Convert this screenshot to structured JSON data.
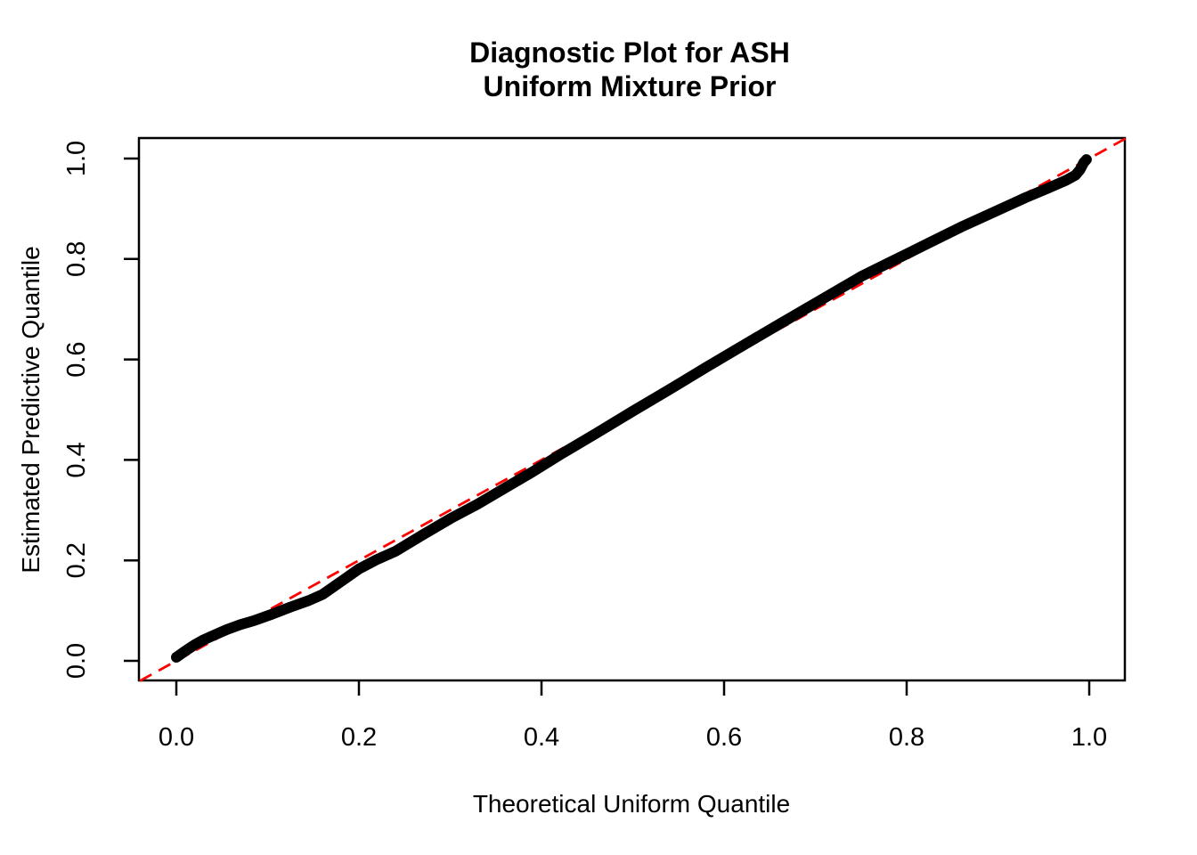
{
  "chart": {
    "title_line1": "Diagnostic Plot for ASH",
    "title_line2": "Uniform Mixture Prior",
    "xlabel": "Theoretical Uniform Quantile",
    "ylabel": "Estimated Predictive Quantile"
  },
  "chart_data": {
    "type": "scatter",
    "title": "Diagnostic Plot for ASH\nUniform Mixture Prior",
    "xlabel": "Theoretical Uniform Quantile",
    "ylabel": "Estimated Predictive Quantile",
    "xlim": [
      -0.04,
      1.04
    ],
    "ylim": [
      -0.04,
      1.04
    ],
    "x_ticks": [
      0.0,
      0.2,
      0.4,
      0.6,
      0.8,
      1.0
    ],
    "y_ticks": [
      0.0,
      0.2,
      0.4,
      0.6,
      0.8,
      1.0
    ],
    "grid": false,
    "legend": null,
    "series": [
      {
        "name": "estimated-predictive-quantiles",
        "type": "points",
        "marker": "filled-circle-dense-band",
        "color": "#000000",
        "x": [
          0.0,
          0.01,
          0.02,
          0.03,
          0.04,
          0.055,
          0.07,
          0.085,
          0.105,
          0.125,
          0.145,
          0.16,
          0.175,
          0.2,
          0.22,
          0.24,
          0.27,
          0.3,
          0.33,
          0.36,
          0.39,
          0.42,
          0.46,
          0.5,
          0.54,
          0.58,
          0.62,
          0.665,
          0.7,
          0.75,
          0.78,
          0.82,
          0.86,
          0.9,
          0.93,
          0.955,
          0.975,
          0.985,
          0.99,
          0.994,
          0.997
        ],
        "y": [
          0.007,
          0.02,
          0.032,
          0.042,
          0.05,
          0.062,
          0.072,
          0.08,
          0.093,
          0.107,
          0.12,
          0.132,
          0.151,
          0.183,
          0.202,
          0.218,
          0.251,
          0.283,
          0.312,
          0.344,
          0.376,
          0.41,
          0.453,
          0.497,
          0.54,
          0.584,
          0.627,
          0.675,
          0.712,
          0.765,
          0.792,
          0.828,
          0.864,
          0.897,
          0.922,
          0.941,
          0.957,
          0.967,
          0.978,
          0.992,
          0.998
        ]
      },
      {
        "name": "identity-reference-line",
        "type": "line",
        "style": "dashed",
        "color": "#FF0000",
        "slope": 1,
        "intercept": 0
      }
    ]
  },
  "colors": {
    "points": "#000000",
    "reference_line": "#FF0000",
    "axis": "#000000",
    "background": "#FFFFFF"
  },
  "tick_label_format": {
    "x": [
      "0.0",
      "0.2",
      "0.4",
      "0.6",
      "0.8",
      "1.0"
    ],
    "y": [
      "0.0",
      "0.2",
      "0.4",
      "0.6",
      "0.8",
      "1.0"
    ]
  }
}
